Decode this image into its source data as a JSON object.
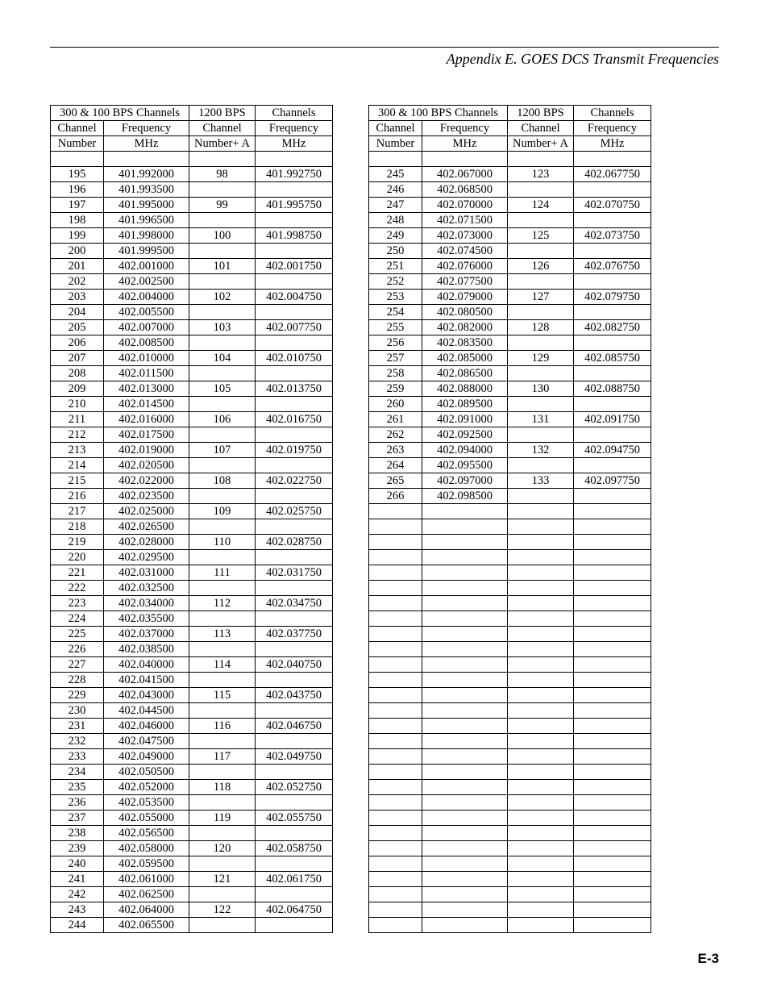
{
  "header_title": "Appendix E.  GOES DCS Transmit Frequencies",
  "page_number": "E-3",
  "col_headers": {
    "h1a": "300 & 100 BPS Channels",
    "h1b": "1200 BPS",
    "h1c": "Channels",
    "h2a": "Channel",
    "h2b": "Frequency",
    "h2c": "Channel",
    "h2d": "Frequency",
    "h3a": "Number",
    "h3b": "MHz",
    "h3c": "Number+ A",
    "h3d": "MHz"
  },
  "left_rows": [
    [
      "",
      "",
      "",
      ""
    ],
    [
      "195",
      "401.992000",
      "98",
      "401.992750"
    ],
    [
      "196",
      "401.993500",
      "",
      ""
    ],
    [
      "197",
      "401.995000",
      "99",
      "401.995750"
    ],
    [
      "198",
      "401.996500",
      "",
      ""
    ],
    [
      "199",
      "401.998000",
      "100",
      "401.998750"
    ],
    [
      "200",
      "401.999500",
      "",
      ""
    ],
    [
      "201",
      "402.001000",
      "101",
      "402.001750"
    ],
    [
      "202",
      "402.002500",
      "",
      ""
    ],
    [
      "203",
      "402.004000",
      "102",
      "402.004750"
    ],
    [
      "204",
      "402.005500",
      "",
      ""
    ],
    [
      "205",
      "402.007000",
      "103",
      "402.007750"
    ],
    [
      "206",
      "402.008500",
      "",
      ""
    ],
    [
      "207",
      "402.010000",
      "104",
      "402.010750"
    ],
    [
      "208",
      "402.011500",
      "",
      ""
    ],
    [
      "209",
      "402.013000",
      "105",
      "402.013750"
    ],
    [
      "210",
      "402.014500",
      "",
      ""
    ],
    [
      "211",
      "402.016000",
      "106",
      "402.016750"
    ],
    [
      "212",
      "402.017500",
      "",
      ""
    ],
    [
      "213",
      "402.019000",
      "107",
      "402.019750"
    ],
    [
      "214",
      "402.020500",
      "",
      ""
    ],
    [
      "215",
      "402.022000",
      "108",
      "402.022750"
    ],
    [
      "216",
      "402.023500",
      "",
      ""
    ],
    [
      "217",
      "402.025000",
      "109",
      "402.025750"
    ],
    [
      "218",
      "402.026500",
      "",
      ""
    ],
    [
      "219",
      "402.028000",
      "110",
      "402.028750"
    ],
    [
      "220",
      "402.029500",
      "",
      ""
    ],
    [
      "221",
      "402.031000",
      "111",
      "402.031750"
    ],
    [
      "222",
      "402.032500",
      "",
      ""
    ],
    [
      "223",
      "402.034000",
      "112",
      "402.034750"
    ],
    [
      "224",
      "402.035500",
      "",
      ""
    ],
    [
      "225",
      "402.037000",
      "113",
      "402.037750"
    ],
    [
      "226",
      "402.038500",
      "",
      ""
    ],
    [
      "227",
      "402.040000",
      "114",
      "402.040750"
    ],
    [
      "228",
      "402.041500",
      "",
      ""
    ],
    [
      "229",
      "402.043000",
      "115",
      "402.043750"
    ],
    [
      "230",
      "402.044500",
      "",
      ""
    ],
    [
      "231",
      "402.046000",
      "116",
      "402.046750"
    ],
    [
      "232",
      "402.047500",
      "",
      ""
    ],
    [
      "233",
      "402.049000",
      "117",
      "402.049750"
    ],
    [
      "234",
      "402.050500",
      "",
      ""
    ],
    [
      "235",
      "402.052000",
      "118",
      "402.052750"
    ],
    [
      "236",
      "402.053500",
      "",
      ""
    ],
    [
      "237",
      "402.055000",
      "119",
      "402.055750"
    ],
    [
      "238",
      "402.056500",
      "",
      ""
    ],
    [
      "239",
      "402.058000",
      "120",
      "402.058750"
    ],
    [
      "240",
      "402.059500",
      "",
      ""
    ],
    [
      "241",
      "402.061000",
      "121",
      "402.061750"
    ],
    [
      "242",
      "402.062500",
      "",
      ""
    ],
    [
      "243",
      "402.064000",
      "122",
      "402.064750"
    ],
    [
      "244",
      "402.065500",
      "",
      ""
    ]
  ],
  "right_rows": [
    [
      "",
      "",
      "",
      ""
    ],
    [
      "245",
      "402.067000",
      "123",
      "402.067750"
    ],
    [
      "246",
      "402.068500",
      "",
      ""
    ],
    [
      "247",
      "402.070000",
      "124",
      "402.070750"
    ],
    [
      "248",
      "402.071500",
      "",
      ""
    ],
    [
      "249",
      "402.073000",
      "125",
      "402.073750"
    ],
    [
      "250",
      "402.074500",
      "",
      ""
    ],
    [
      "251",
      "402.076000",
      "126",
      "402.076750"
    ],
    [
      "252",
      "402.077500",
      "",
      ""
    ],
    [
      "253",
      "402.079000",
      "127",
      "402.079750"
    ],
    [
      "254",
      "402.080500",
      "",
      ""
    ],
    [
      "255",
      "402.082000",
      "128",
      "402.082750"
    ],
    [
      "256",
      "402.083500",
      "",
      ""
    ],
    [
      "257",
      "402.085000",
      "129",
      "402.085750"
    ],
    [
      "258",
      "402.086500",
      "",
      ""
    ],
    [
      "259",
      "402.088000",
      "130",
      "402.088750"
    ],
    [
      "260",
      "402.089500",
      "",
      ""
    ],
    [
      "261",
      "402.091000",
      "131",
      "402.091750"
    ],
    [
      "262",
      "402.092500",
      "",
      ""
    ],
    [
      "263",
      "402.094000",
      "132",
      "402.094750"
    ],
    [
      "264",
      "402.095500",
      "",
      ""
    ],
    [
      "265",
      "402.097000",
      "133",
      "402.097750"
    ],
    [
      "266",
      "402.098500",
      "",
      ""
    ],
    [
      "",
      "",
      "",
      ""
    ],
    [
      "",
      "",
      "",
      ""
    ],
    [
      "",
      "",
      "",
      ""
    ],
    [
      "",
      "",
      "",
      ""
    ],
    [
      "",
      "",
      "",
      ""
    ],
    [
      "",
      "",
      "",
      ""
    ],
    [
      "",
      "",
      "",
      ""
    ],
    [
      "",
      "",
      "",
      ""
    ],
    [
      "",
      "",
      "",
      ""
    ],
    [
      "",
      "",
      "",
      ""
    ],
    [
      "",
      "",
      "",
      ""
    ],
    [
      "",
      "",
      "",
      ""
    ],
    [
      "",
      "",
      "",
      ""
    ],
    [
      "",
      "",
      "",
      ""
    ],
    [
      "",
      "",
      "",
      ""
    ],
    [
      "",
      "",
      "",
      ""
    ],
    [
      "",
      "",
      "",
      ""
    ],
    [
      "",
      "",
      "",
      ""
    ],
    [
      "",
      "",
      "",
      ""
    ],
    [
      "",
      "",
      "",
      ""
    ],
    [
      "",
      "",
      "",
      ""
    ],
    [
      "",
      "",
      "",
      ""
    ],
    [
      "",
      "",
      "",
      ""
    ],
    [
      "",
      "",
      "",
      ""
    ],
    [
      "",
      "",
      "",
      ""
    ],
    [
      "",
      "",
      "",
      ""
    ],
    [
      "",
      "",
      "",
      ""
    ],
    [
      "",
      "",
      "",
      ""
    ]
  ]
}
